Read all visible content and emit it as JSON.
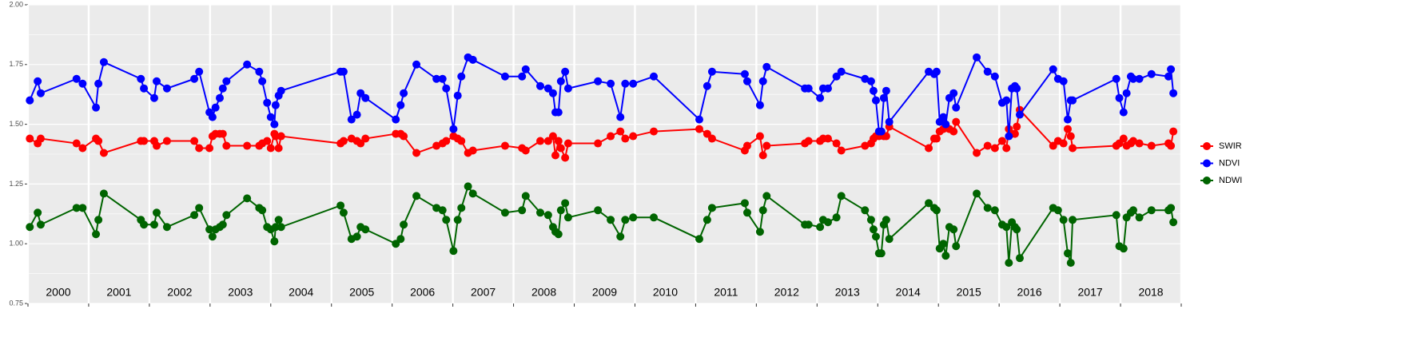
{
  "chart_data": {
    "type": "line",
    "x": [
      2000.03,
      2000.16,
      2000.21,
      2000.8,
      2000.9,
      2001.12,
      2001.16,
      2001.25,
      2001.86,
      2001.91,
      2002.08,
      2002.12,
      2002.29,
      2002.74,
      2002.82,
      2002.99,
      2003.04,
      2003.09,
      2003.16,
      2003.21,
      2003.27,
      2003.61,
      2003.81,
      2003.86,
      2003.94,
      2004.0,
      2004.06,
      2004.08,
      2004.13,
      2004.17,
      2005.15,
      2005.2,
      2005.33,
      2005.42,
      2005.48,
      2005.56,
      2006.06,
      2006.14,
      2006.19,
      2006.4,
      2006.73,
      2006.83,
      2006.89,
      2007.01,
      2007.08,
      2007.14,
      2007.25,
      2007.33,
      2007.86,
      2008.14,
      2008.2,
      2008.44,
      2008.57,
      2008.65,
      2008.69,
      2008.74,
      2008.78,
      2008.85,
      2008.9,
      2009.39,
      2009.6,
      2009.76,
      2009.84,
      2009.97,
      2010.31,
      2011.06,
      2011.19,
      2011.27,
      2011.81,
      2011.85,
      2012.06,
      2012.11,
      2012.17,
      2012.8,
      2012.86,
      2013.05,
      2013.1,
      2013.18,
      2013.32,
      2013.4,
      2013.79,
      2013.89,
      2013.93,
      2013.97,
      2014.02,
      2014.06,
      2014.1,
      2014.14,
      2014.19,
      2014.84,
      2014.93,
      2014.97,
      2015.02,
      2015.08,
      2015.12,
      2015.18,
      2015.25,
      2015.29,
      2015.63,
      2015.81,
      2015.93,
      2016.05,
      2016.12,
      2016.16,
      2016.21,
      2016.26,
      2016.29,
      2016.34,
      2016.89,
      2016.97,
      2017.06,
      2017.13,
      2017.18,
      2017.21,
      2017.93,
      2017.98,
      2018.05,
      2018.1,
      2018.17,
      2018.21,
      2018.31,
      2018.51,
      2018.79,
      2018.83,
      2018.87
    ],
    "series": [
      {
        "name": "SWIR",
        "color": "#ff0000",
        "values": [
          1.44,
          1.42,
          1.44,
          1.42,
          1.4,
          1.44,
          1.43,
          1.38,
          1.43,
          1.43,
          1.43,
          1.41,
          1.43,
          1.43,
          1.4,
          1.4,
          1.45,
          1.46,
          1.46,
          1.46,
          1.41,
          1.41,
          1.41,
          1.42,
          1.43,
          1.4,
          1.46,
          1.45,
          1.4,
          1.45,
          1.42,
          1.43,
          1.44,
          1.43,
          1.42,
          1.44,
          1.46,
          1.46,
          1.45,
          1.38,
          1.41,
          1.42,
          1.43,
          1.45,
          1.44,
          1.43,
          1.38,
          1.39,
          1.41,
          1.4,
          1.39,
          1.43,
          1.43,
          1.45,
          1.37,
          1.43,
          1.4,
          1.36,
          1.42,
          1.42,
          1.45,
          1.47,
          1.44,
          1.45,
          1.47,
          1.48,
          1.46,
          1.44,
          1.39,
          1.41,
          1.45,
          1.37,
          1.41,
          1.42,
          1.43,
          1.43,
          1.44,
          1.44,
          1.42,
          1.39,
          1.41,
          1.42,
          1.44,
          1.45,
          1.45,
          1.46,
          1.45,
          1.45,
          1.49,
          1.4,
          1.44,
          1.44,
          1.47,
          1.48,
          1.49,
          1.48,
          1.47,
          1.51,
          1.38,
          1.41,
          1.4,
          1.43,
          1.4,
          1.48,
          1.46,
          1.46,
          1.49,
          1.56,
          1.41,
          1.43,
          1.42,
          1.48,
          1.45,
          1.4,
          1.41,
          1.42,
          1.44,
          1.41,
          1.42,
          1.43,
          1.42,
          1.41,
          1.42,
          1.41,
          1.47
        ]
      },
      {
        "name": "NDVI",
        "color": "#0000ff",
        "values": [
          1.6,
          1.68,
          1.63,
          1.69,
          1.67,
          1.57,
          1.67,
          1.76,
          1.69,
          1.65,
          1.61,
          1.68,
          1.65,
          1.69,
          1.72,
          1.55,
          1.53,
          1.57,
          1.61,
          1.65,
          1.68,
          1.75,
          1.72,
          1.68,
          1.59,
          1.53,
          1.5,
          1.58,
          1.62,
          1.64,
          1.72,
          1.72,
          1.52,
          1.54,
          1.63,
          1.61,
          1.52,
          1.58,
          1.63,
          1.75,
          1.69,
          1.69,
          1.65,
          1.48,
          1.62,
          1.7,
          1.78,
          1.77,
          1.7,
          1.7,
          1.73,
          1.66,
          1.65,
          1.63,
          1.55,
          1.55,
          1.68,
          1.72,
          1.65,
          1.68,
          1.67,
          1.53,
          1.67,
          1.67,
          1.7,
          1.52,
          1.66,
          1.72,
          1.71,
          1.68,
          1.58,
          1.68,
          1.74,
          1.65,
          1.65,
          1.61,
          1.65,
          1.65,
          1.7,
          1.72,
          1.69,
          1.68,
          1.64,
          1.6,
          1.47,
          1.47,
          1.61,
          1.64,
          1.51,
          1.72,
          1.71,
          1.72,
          1.51,
          1.53,
          1.5,
          1.61,
          1.63,
          1.57,
          1.78,
          1.72,
          1.7,
          1.59,
          1.6,
          1.45,
          1.65,
          1.66,
          1.65,
          1.54,
          1.73,
          1.69,
          1.68,
          1.52,
          1.6,
          1.6,
          1.69,
          1.61,
          1.55,
          1.63,
          1.7,
          1.69,
          1.69,
          1.71,
          1.7,
          1.73,
          1.63
        ]
      },
      {
        "name": "NDWI",
        "color": "#006400",
        "values": [
          1.07,
          1.13,
          1.08,
          1.15,
          1.15,
          1.04,
          1.1,
          1.21,
          1.1,
          1.08,
          1.08,
          1.13,
          1.07,
          1.12,
          1.15,
          1.06,
          1.03,
          1.06,
          1.07,
          1.08,
          1.12,
          1.19,
          1.15,
          1.14,
          1.07,
          1.06,
          1.01,
          1.07,
          1.1,
          1.07,
          1.16,
          1.13,
          1.02,
          1.03,
          1.07,
          1.06,
          1.0,
          1.02,
          1.08,
          1.2,
          1.15,
          1.14,
          1.1,
          0.97,
          1.1,
          1.15,
          1.24,
          1.21,
          1.13,
          1.14,
          1.2,
          1.13,
          1.12,
          1.07,
          1.05,
          1.04,
          1.14,
          1.17,
          1.11,
          1.14,
          1.1,
          1.03,
          1.1,
          1.11,
          1.11,
          1.02,
          1.1,
          1.15,
          1.17,
          1.13,
          1.05,
          1.14,
          1.2,
          1.08,
          1.08,
          1.07,
          1.1,
          1.09,
          1.11,
          1.2,
          1.14,
          1.1,
          1.06,
          1.03,
          0.96,
          0.96,
          1.08,
          1.1,
          1.02,
          1.17,
          1.15,
          1.14,
          0.98,
          1.0,
          0.95,
          1.07,
          1.06,
          0.99,
          1.21,
          1.15,
          1.14,
          1.08,
          1.07,
          0.92,
          1.09,
          1.07,
          1.06,
          0.94,
          1.15,
          1.14,
          1.1,
          0.96,
          0.92,
          1.1,
          1.12,
          0.99,
          0.98,
          1.11,
          1.13,
          1.14,
          1.11,
          1.14,
          1.14,
          1.15,
          1.09
        ]
      }
    ],
    "xlim": [
      2000,
      2019
    ],
    "xticks": [
      2000,
      2001,
      2002,
      2003,
      2004,
      2005,
      2006,
      2007,
      2008,
      2009,
      2010,
      2011,
      2012,
      2013,
      2014,
      2015,
      2016,
      2017,
      2018,
      2019
    ],
    "year_labels": [
      "2000",
      "2001",
      "2002",
      "2003",
      "2004",
      "2005",
      "2006",
      "2007",
      "2008",
      "2009",
      "2010",
      "2011",
      "2012",
      "2013",
      "2014",
      "2015",
      "2016",
      "2017",
      "2018"
    ],
    "ylim": [
      0.75,
      2.0
    ],
    "yticks": [
      {
        "value": 0.75,
        "label": "0.75"
      },
      {
        "value": 1.0,
        "label": "1.00"
      },
      {
        "value": 1.25,
        "label": "1.25"
      },
      {
        "value": 1.5,
        "label": "1.50"
      },
      {
        "value": 1.75,
        "label": "1.75"
      },
      {
        "value": 2.0,
        "label": "2.00"
      }
    ],
    "grid": true,
    "legend": "right"
  }
}
